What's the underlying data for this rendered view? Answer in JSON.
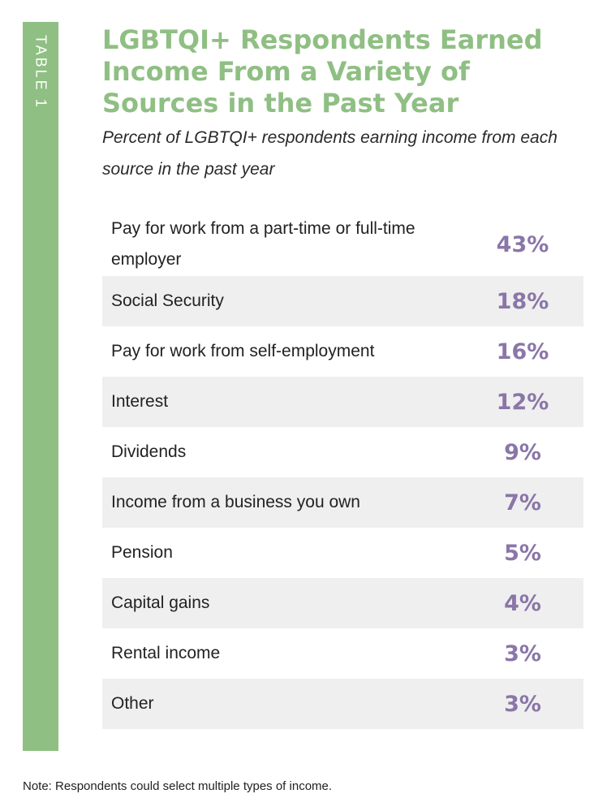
{
  "side_label": "TABLE 1",
  "title": "LGBTQI+ Respondents Earned Income From a Variety of Sources in the Past Year",
  "subtitle": "Percent of LGBTQI+ respondents earning income from each source in the past year",
  "note": "Note: Respondents could select multiple types of income.",
  "colors": {
    "accent_green": "#8fbf83",
    "value_purple": "#8a76a8",
    "row_shade": "#efefef"
  },
  "chart_data": {
    "type": "table",
    "title": "LGBTQI+ Respondents Earned Income From a Variety of Sources in the Past Year",
    "subtitle": "Percent of LGBTQI+ respondents earning income from each source in the past year",
    "rows": [
      {
        "label": "Pay for work from a part-time or full-time employer",
        "value": "43%"
      },
      {
        "label": "Social Security",
        "value": "18%"
      },
      {
        "label": "Pay for work from self-employment",
        "value": "16%"
      },
      {
        "label": "Interest",
        "value": "12%"
      },
      {
        "label": "Dividends",
        "value": "9%"
      },
      {
        "label": "Income from a business you own",
        "value": "7%"
      },
      {
        "label": "Pension",
        "value": "5%"
      },
      {
        "label": "Capital gains",
        "value": "4%"
      },
      {
        "label": "Rental income",
        "value": "3%"
      },
      {
        "label": "Other",
        "value": "3%"
      }
    ]
  }
}
